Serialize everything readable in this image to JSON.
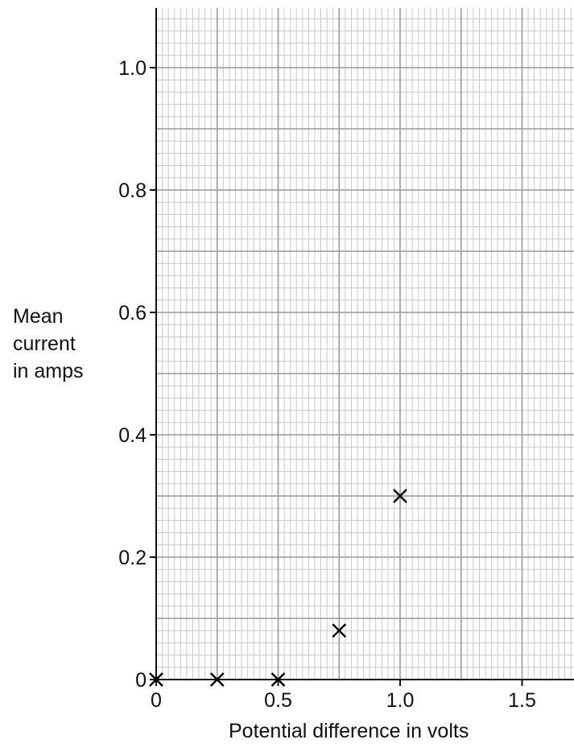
{
  "chart_data": {
    "type": "scatter",
    "xlabel": "Potential difference in volts",
    "ylabel_lines": [
      "Mean",
      "current",
      "in amps"
    ],
    "xlim": [
      0,
      1.72
    ],
    "ylim": [
      0,
      1.1
    ],
    "x_ticks": [
      "0",
      "0.5",
      "1.0",
      "1.5"
    ],
    "y_ticks": [
      "0",
      "0.2",
      "0.4",
      "0.6",
      "0.8",
      "1.0"
    ],
    "grid": true,
    "marker": "x",
    "points": [
      {
        "x": 0,
        "y": 0
      },
      {
        "x": 0.25,
        "y": 0
      },
      {
        "x": 0.5,
        "y": 0
      },
      {
        "x": 0.75,
        "y": 0.08
      },
      {
        "x": 1.0,
        "y": 0.3
      }
    ]
  },
  "colors": {
    "minor_grid": "#c8c8c8",
    "major_grid": "#9a9a9a",
    "axis": "#111111",
    "marker": "#000000"
  }
}
